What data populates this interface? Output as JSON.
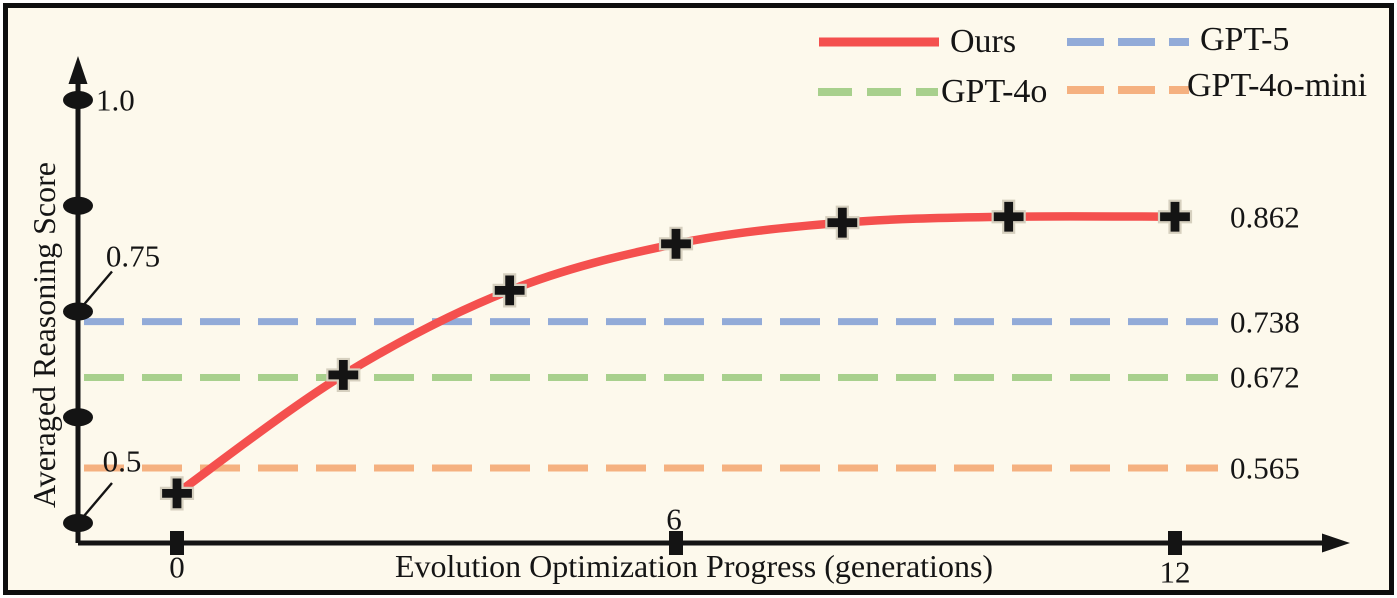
{
  "figure": {
    "background": "#fdf9ec",
    "ink": "#141414",
    "marker_outline": "#d6d0bf"
  },
  "legend": {
    "items": [
      {
        "label": "Ours",
        "color": "#f4504e",
        "style": "solid"
      },
      {
        "label": "GPT-5",
        "color": "#92abd8",
        "style": "dashed"
      },
      {
        "label": "GPT-4o",
        "color": "#a8d08d",
        "style": "dashed"
      },
      {
        "label": "GPT-4o-mini",
        "color": "#f5b180",
        "style": "dashed"
      }
    ]
  },
  "chart_data": {
    "type": "line",
    "title": "",
    "xlabel": "Evolution Optimization Progress (generations)",
    "ylabel": "Averaged Reasoning Score",
    "xlim": [
      0,
      12
    ],
    "ylim": [
      0.5,
      1.0
    ],
    "grid": false,
    "legend_position": "top-right",
    "x": [
      0,
      2,
      4,
      6,
      8,
      10,
      12
    ],
    "series": [
      {
        "name": "Ours",
        "color": "#f4504e",
        "style": "solid",
        "marker": "plus",
        "values": [
          0.535,
          0.675,
          0.775,
          0.83,
          0.855,
          0.862,
          0.862
        ],
        "end_label": "0.862"
      }
    ],
    "baselines": [
      {
        "name": "GPT-5",
        "color": "#92abd8",
        "value": 0.738,
        "label": "0.738"
      },
      {
        "name": "GPT-4o",
        "color": "#a8d08d",
        "value": 0.672,
        "label": "0.672"
      },
      {
        "name": "GPT-4o-mini",
        "color": "#f5b180",
        "value": 0.565,
        "label": "0.565"
      }
    ],
    "yticks": [
      {
        "value": 1.0,
        "label": "1.0",
        "leader": false
      },
      {
        "value": 0.875,
        "label": "",
        "leader": false
      },
      {
        "value": 0.75,
        "label": "0.75",
        "leader": true
      },
      {
        "value": 0.625,
        "label": "",
        "leader": false
      },
      {
        "value": 0.5,
        "label": "0.5",
        "leader": true
      }
    ],
    "xticks": [
      {
        "value": 0,
        "label": "0"
      },
      {
        "value": 6,
        "label": "6"
      },
      {
        "value": 12,
        "label": "12"
      }
    ]
  }
}
